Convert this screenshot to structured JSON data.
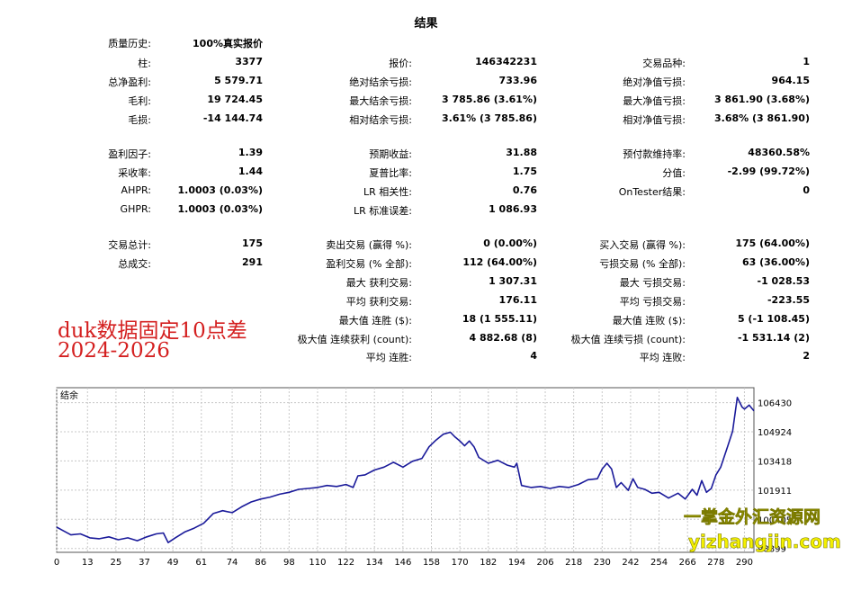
{
  "report": {
    "title": "结果",
    "history_quality": {
      "label": "质量历史:",
      "value": "100%真实报价"
    },
    "rows_block1": [
      {
        "c1": {
          "label": "柱:",
          "value": "3377"
        },
        "c2": {
          "label": "报价:",
          "value": "146342231"
        },
        "c3": {
          "label": "交易品种:",
          "value": "1"
        }
      },
      {
        "c1": {
          "label": "总净盈利:",
          "value": "5 579.71"
        },
        "c2": {
          "label": "绝对结余亏损:",
          "value": "733.96"
        },
        "c3": {
          "label": "绝对净值亏损:",
          "value": "964.15"
        }
      },
      {
        "c1": {
          "label": "毛利:",
          "value": "19 724.45"
        },
        "c2": {
          "label": "最大结余亏损:",
          "value": "3 785.86 (3.61%)"
        },
        "c3": {
          "label": "最大净值亏损:",
          "value": "3 861.90 (3.68%)"
        }
      },
      {
        "c1": {
          "label": "毛损:",
          "value": "-14 144.74"
        },
        "c2": {
          "label": "相对结余亏损:",
          "value": "3.61% (3 785.86)"
        },
        "c3": {
          "label": "相对净值亏损:",
          "value": "3.68% (3 861.90)"
        }
      }
    ],
    "rows_block2": [
      {
        "c1": {
          "label": "盈利因子:",
          "value": "1.39"
        },
        "c2": {
          "label": "预期收益:",
          "value": "31.88"
        },
        "c3": {
          "label": "预付款维持率:",
          "value": "48360.58%"
        }
      },
      {
        "c1": {
          "label": "采收率:",
          "value": "1.44"
        },
        "c2": {
          "label": "夏普比率:",
          "value": "1.75"
        },
        "c3": {
          "label": "分值:",
          "value": "-2.99 (99.72%)"
        }
      },
      {
        "c1": {
          "label": "AHPR:",
          "value": "1.0003 (0.03%)"
        },
        "c2": {
          "label": "LR 相关性:",
          "value": "0.76"
        },
        "c3": {
          "label": "OnTester结果:",
          "value": "0"
        }
      },
      {
        "c1": {
          "label": "GHPR:",
          "value": "1.0003 (0.03%)"
        },
        "c2": {
          "label": "LR 标准误差:",
          "value": "1 086.93"
        },
        "c3": {
          "label": "",
          "value": ""
        }
      }
    ],
    "rows_block3": [
      {
        "c1": {
          "label": "交易总计:",
          "value": "175"
        },
        "c2": {
          "label": "卖出交易 (赢得 %):",
          "value": "0 (0.00%)"
        },
        "c3": {
          "label": "买入交易 (赢得 %):",
          "value": "175 (64.00%)"
        }
      },
      {
        "c1": {
          "label": "总成交:",
          "value": "291"
        },
        "c2": {
          "label": "盈利交易 (% 全部):",
          "value": "112 (64.00%)"
        },
        "c3": {
          "label": "亏损交易 (% 全部):",
          "value": "63 (36.00%)"
        }
      },
      {
        "c1": {
          "label": "",
          "value": ""
        },
        "c2": {
          "label": "最大 获利交易:",
          "value": "1 307.31"
        },
        "c3": {
          "label": "最大 亏损交易:",
          "value": "-1 028.53"
        }
      },
      {
        "c1": {
          "label": "",
          "value": ""
        },
        "c2": {
          "label": "平均 获利交易:",
          "value": "176.11"
        },
        "c3": {
          "label": "平均 亏损交易:",
          "value": "-223.55"
        }
      },
      {
        "c1": {
          "label": "",
          "value": ""
        },
        "c2": {
          "label": "最大值 连胜 ($):",
          "value": "18 (1 555.11)"
        },
        "c3": {
          "label": "最大值 连败 ($):",
          "value": "5 (-1 108.45)"
        }
      },
      {
        "c1": {
          "label": "",
          "value": ""
        },
        "c2": {
          "label": "极大值 连续获利 (count):",
          "value": "4 882.68 (8)"
        },
        "c3": {
          "label": "极大值 连续亏损 (count):",
          "value": "-1 531.14 (2)"
        }
      },
      {
        "c1": {
          "label": "",
          "value": ""
        },
        "c2": {
          "label": "平均 连胜:",
          "value": "4"
        },
        "c3": {
          "label": "平均 连败:",
          "value": "2"
        }
      }
    ]
  },
  "overlay_text": {
    "line1": "duk数据固定10点差",
    "line2": "2024-2026"
  },
  "watermark": {
    "line1": "一掌金外汇资源网",
    "line2": "yizhangjin.com"
  },
  "colors": {
    "overlay_red": "#d42020",
    "line_blue": "#1a1a9a",
    "watermark_yellow": "#f4f000"
  },
  "chart_data": {
    "type": "line",
    "title": "",
    "legend_label": "结余",
    "x_ticks": [
      0,
      13,
      25,
      37,
      49,
      61,
      74,
      86,
      98,
      110,
      122,
      134,
      146,
      158,
      170,
      182,
      194,
      206,
      218,
      230,
      242,
      254,
      266,
      278,
      290
    ],
    "y_ticks": [
      "106430",
      "104924",
      "103418",
      "101911",
      "100405",
      "98899"
    ],
    "xlim": [
      0,
      294
    ],
    "ylim": [
      98700,
      107200
    ],
    "grid": true,
    "series": [
      {
        "x": [
          0,
          3,
          6,
          10,
          14,
          18,
          22,
          26,
          30,
          34,
          38,
          42,
          45,
          47,
          50,
          54,
          58,
          62,
          66,
          70,
          74,
          78,
          82,
          86,
          90,
          94,
          98,
          102,
          106,
          110,
          114,
          118,
          122,
          125,
          127,
          130,
          134,
          138,
          142,
          146,
          150,
          154,
          157,
          160,
          163,
          166,
          168,
          170,
          172,
          174,
          176,
          178,
          182,
          186,
          190,
          193,
          194,
          196,
          200,
          204,
          208,
          212,
          216,
          220,
          224,
          228,
          230,
          232,
          234,
          236,
          238,
          241,
          243,
          245,
          248,
          251,
          254,
          258,
          262,
          265,
          268,
          270,
          272,
          274,
          276,
          278,
          280,
          283,
          285,
          287,
          289,
          290,
          292,
          294
        ],
        "y": [
          100000,
          99800,
          99600,
          99650,
          99450,
          99400,
          99500,
          99350,
          99450,
          99300,
          99500,
          99650,
          99700,
          99200,
          99450,
          99750,
          99950,
          100200,
          100700,
          100850,
          100750,
          101050,
          101300,
          101450,
          101550,
          101700,
          101800,
          101950,
          102000,
          102050,
          102150,
          102100,
          102200,
          102050,
          102650,
          102700,
          102950,
          103100,
          103350,
          103100,
          103400,
          103550,
          104150,
          104500,
          104800,
          104900,
          104650,
          104450,
          104200,
          104450,
          104150,
          103600,
          103300,
          103450,
          103200,
          103100,
          103300,
          102150,
          102050,
          102100,
          102000,
          102100,
          102050,
          102200,
          102450,
          102500,
          103000,
          103300,
          103000,
          102050,
          102300,
          101900,
          102500,
          102050,
          101950,
          101750,
          101800,
          101500,
          101750,
          101450,
          101950,
          101650,
          102400,
          101800,
          102000,
          102700,
          103100,
          104200,
          104950,
          106700,
          106200,
          106100,
          106300,
          106000
        ]
      }
    ]
  }
}
